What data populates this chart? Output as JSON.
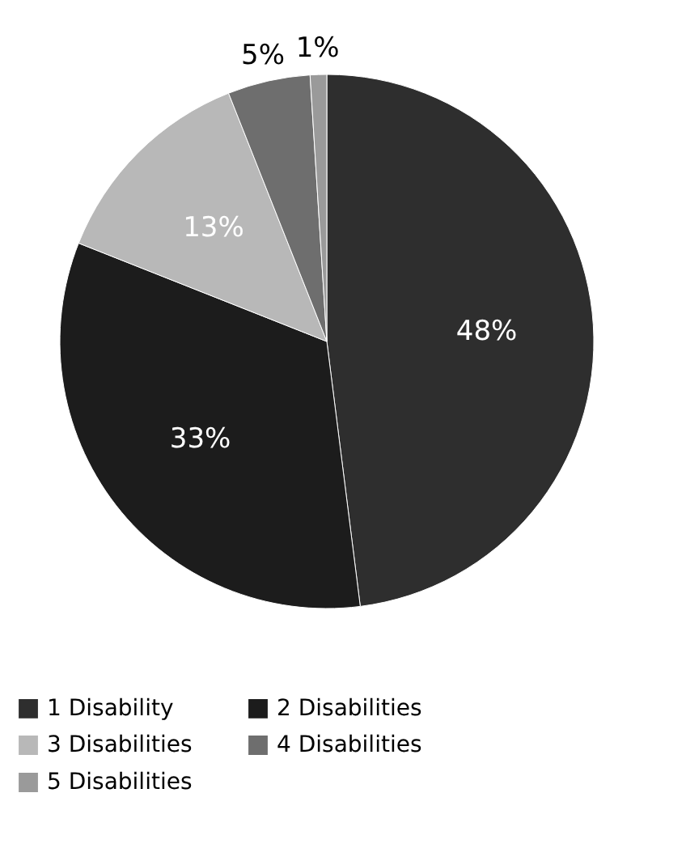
{
  "chart_data": {
    "type": "pie",
    "categories": [
      "1 Disability",
      "2 Disabilities",
      "3 Disabilities",
      "4 Disabilities",
      "5 Disabilities"
    ],
    "values": [
      48,
      33,
      13,
      5,
      1
    ],
    "colors": [
      "#2e2e2e",
      "#1c1c1c",
      "#b8b8b8",
      "#6e6e6e",
      "#9a9a9a"
    ],
    "value_labels": [
      "48%",
      "33%",
      "13%",
      "5%",
      "1%"
    ],
    "legend": "bottom"
  }
}
